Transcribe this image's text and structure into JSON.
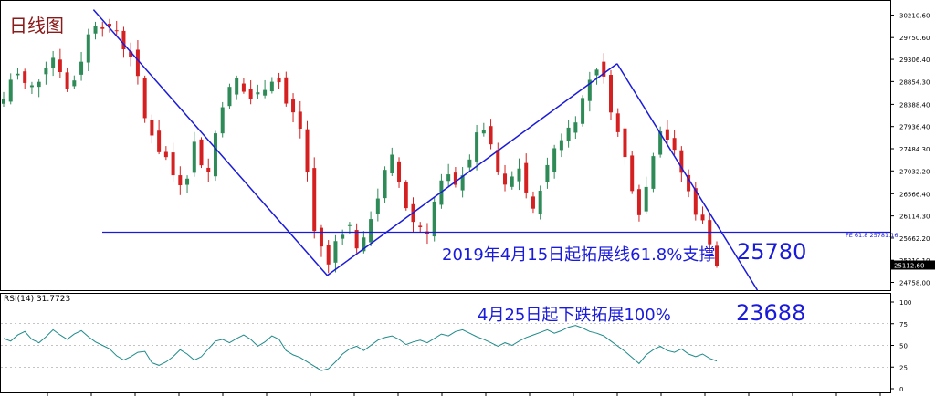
{
  "title": "日线图",
  "annotations": {
    "fib_support": "2019年4月15日起拓展线61.8%支撑",
    "fib_support_value": "25780",
    "extension_100": "4月25日起下跌拓展100%",
    "extension_value": "23688",
    "fe_line_label": "FE 61.8  25781.16"
  },
  "colors": {
    "up": "#2e8b57",
    "down": "#d42020",
    "trendline": "#1a1adb",
    "rsi": "#1d8a8a",
    "price_tag_bg": "#000000"
  },
  "chart_data": [
    {
      "type": "candlestick",
      "title": "日线图",
      "ylim": [
        24600,
        30480
      ],
      "yticks": [
        30210.6,
        29750.6,
        29306.4,
        28854.3,
        28388.4,
        27936.4,
        27484.3,
        27032.2,
        26566.4,
        26114.3,
        25662.2,
        25210.1,
        24758.0
      ],
      "ytick_labels": [
        "30210.60",
        "29750.60",
        "29306.40",
        "28854.30",
        "28388.40",
        "27936.40",
        "27484.30",
        "27032.20",
        "26566.40",
        "26114.30",
        "25662.20",
        "25210.10",
        "24758.00"
      ],
      "last_price": "25112.60",
      "horizontal_line": {
        "value": 25781.16,
        "label": "FE 61.8  25781.16"
      },
      "trendlines": [
        {
          "from": [
            0.1,
            30320
          ],
          "to": [
            0.35,
            24900
          ]
        },
        {
          "from": [
            0.35,
            24900
          ],
          "to": [
            0.66,
            29220
          ]
        },
        {
          "from": [
            0.66,
            29220
          ],
          "to": [
            0.81,
            24600
          ]
        }
      ],
      "series": [
        {
          "close_path": [
            28500,
            28900,
            29000,
            28800,
            28750,
            28900,
            29200,
            29350,
            29100,
            28700,
            28900,
            29300,
            29800,
            30050,
            30000,
            29900,
            29900,
            29550,
            29400,
            28900,
            28100,
            27800,
            27450,
            27300,
            26950,
            26800,
            26950,
            27600,
            27200,
            27000,
            27800,
            28400,
            28700,
            28900,
            28650,
            28500,
            28600,
            28750,
            28900,
            28850,
            28400,
            28200,
            27900,
            27000,
            25800,
            25500,
            25100,
            25600,
            25800,
            25900,
            25500,
            25600,
            26100,
            26500,
            27000,
            27300,
            26800,
            26300,
            26000,
            25900,
            25800,
            26400,
            26800,
            26900,
            26700,
            27000,
            27300,
            27750,
            27900,
            27500,
            27000,
            26700,
            26900,
            27100,
            26600,
            26200,
            26700,
            27100,
            27500,
            27700,
            27900,
            28100,
            28500,
            28900,
            29150,
            28900,
            28300,
            27800,
            27300,
            26700,
            26200,
            26700,
            27400,
            27900,
            27700,
            27400,
            27000,
            26600,
            26200,
            25980,
            25600,
            25112
          ]
        }
      ]
    },
    {
      "type": "line",
      "title": "RSI(14) 31.7723",
      "ylim": [
        0,
        100
      ],
      "yticks": [
        100,
        75,
        50,
        25,
        0
      ],
      "ytick_labels": [
        "100",
        "75",
        "50",
        "25",
        "0"
      ],
      "series": [
        {
          "name": "RSI(14) 31.7723",
          "values": [
            58,
            55,
            62,
            66,
            57,
            53,
            60,
            68,
            62,
            57,
            63,
            67,
            60,
            54,
            50,
            46,
            38,
            33,
            37,
            42,
            43,
            30,
            27,
            31,
            37,
            45,
            40,
            33,
            37,
            46,
            55,
            57,
            53,
            58,
            62,
            57,
            49,
            54,
            61,
            57,
            44,
            39,
            36,
            31,
            26,
            21,
            23,
            31,
            40,
            46,
            49,
            44,
            50,
            56,
            59,
            61,
            57,
            51,
            54,
            56,
            53,
            58,
            63,
            61,
            66,
            68,
            64,
            60,
            57,
            53,
            49,
            53,
            50,
            55,
            59,
            62,
            65,
            68,
            64,
            67,
            71,
            73,
            70,
            66,
            64,
            61,
            55,
            49,
            43,
            36,
            29,
            39,
            45,
            49,
            44,
            42,
            46,
            40,
            37,
            40,
            35,
            32
          ]
        }
      ]
    }
  ]
}
